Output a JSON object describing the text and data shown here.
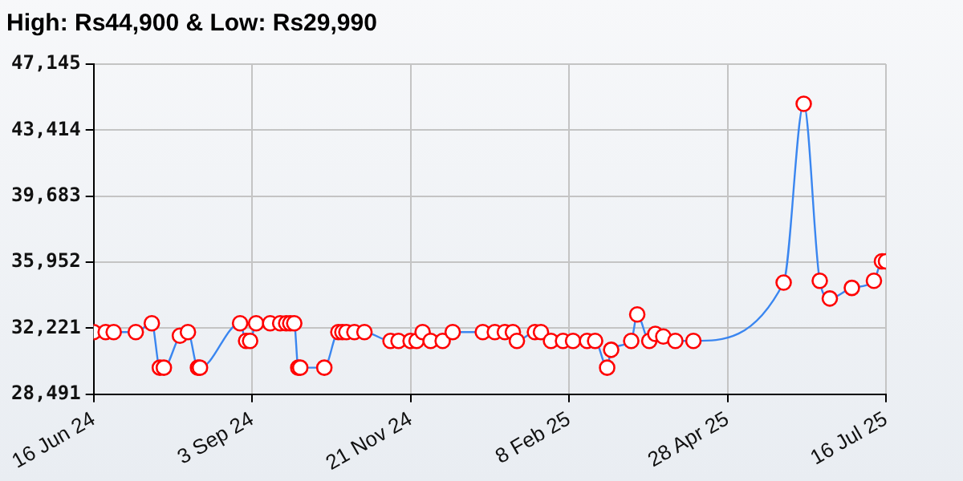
{
  "chart_data": {
    "type": "line",
    "title": "High: Rs44,900 & Low: Rs29,990",
    "x": [
      "2024-06-16",
      "2024-06-22",
      "2024-06-26",
      "2024-07-07",
      "2024-07-15",
      "2024-07-19",
      "2024-07-21",
      "2024-07-29",
      "2024-08-02",
      "2024-08-07",
      "2024-08-08",
      "2024-08-28",
      "2024-08-31",
      "2024-09-02",
      "2024-09-05",
      "2024-09-12",
      "2024-09-17",
      "2024-09-20",
      "2024-09-22",
      "2024-09-24",
      "2024-09-26",
      "2024-09-27",
      "2024-10-09",
      "2024-10-16",
      "2024-10-18",
      "2024-10-20",
      "2024-10-24",
      "2024-10-29",
      "2024-11-11",
      "2024-11-15",
      "2024-11-21",
      "2024-11-24",
      "2024-11-27",
      "2024-12-01",
      "2024-12-07",
      "2024-12-12",
      "2024-12-27",
      "2025-01-02",
      "2025-01-07",
      "2025-01-11",
      "2025-01-13",
      "2025-01-22",
      "2025-01-25",
      "2025-01-30",
      "2025-02-05",
      "2025-02-10",
      "2025-02-17",
      "2025-02-21",
      "2025-02-27",
      "2025-03-01",
      "2025-03-11",
      "2025-03-14",
      "2025-03-20",
      "2025-03-23",
      "2025-03-27",
      "2025-04-02",
      "2025-04-11",
      "2025-05-26",
      "2025-06-05",
      "2025-06-13",
      "2025-06-18",
      "2025-06-29",
      "2025-07-10",
      "2025-07-14",
      "2025-07-16"
    ],
    "series": [
      {
        "color": "#3a86f0",
        "values": [
          32000,
          32000,
          32000,
          32000,
          32500,
          29990,
          29990,
          31800,
          32000,
          29990,
          29990,
          32500,
          31500,
          31500,
          32500,
          32500,
          32500,
          32500,
          32500,
          32500,
          29990,
          29990,
          29990,
          32000,
          32000,
          32000,
          32000,
          32000,
          31500,
          31500,
          31500,
          31500,
          32000,
          31500,
          31500,
          32000,
          32000,
          32000,
          32000,
          32000,
          31500,
          32000,
          32000,
          31500,
          31500,
          31500,
          31500,
          31500,
          29990,
          31000,
          31500,
          33000,
          31500,
          31900,
          31750,
          31500,
          31500,
          34800,
          44900,
          34900,
          33900,
          34500,
          34900,
          36000,
          36000
        ]
      }
    ],
    "xlim": [
      "2024-06-16",
      "2025-07-16"
    ],
    "xticks": [
      {
        "value": "2024-06-16",
        "label": "16 Jun 24"
      },
      {
        "value": "2024-09-03",
        "label": "3 Sep 24"
      },
      {
        "value": "2024-11-21",
        "label": "21 Nov 24"
      },
      {
        "value": "2025-02-08",
        "label": "8 Feb 25"
      },
      {
        "value": "2025-04-28",
        "label": "28 Apr 25"
      },
      {
        "value": "2025-07-16",
        "label": "16 Jul 25"
      }
    ],
    "ylim": [
      28491,
      47145
    ],
    "yticks": [
      {
        "value": 28491,
        "label": "28,491"
      },
      {
        "value": 32221,
        "label": "32,221"
      },
      {
        "value": 35952,
        "label": "35,952"
      },
      {
        "value": 39683,
        "label": "39,683"
      },
      {
        "value": 43414,
        "label": "43,414"
      },
      {
        "value": 47145,
        "label": "47,145"
      }
    ],
    "grid": true,
    "marker": "circle"
  }
}
